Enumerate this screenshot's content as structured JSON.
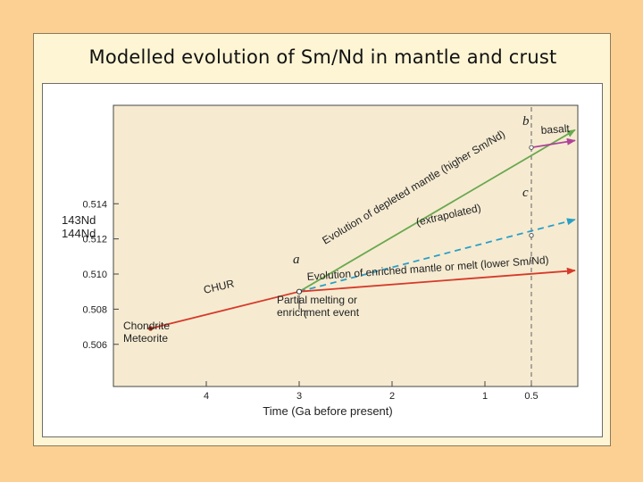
{
  "slide": {
    "title": "Modelled evolution of Sm/Nd in mantle and crust"
  },
  "chart_data": {
    "type": "line",
    "x_axis": {
      "label": "Time (Ga before present)",
      "ticks": [
        "4",
        "3",
        "2",
        "1",
        "0.5"
      ],
      "tick_values": [
        4,
        3,
        2,
        1,
        0.5
      ],
      "range": [
        5,
        0
      ],
      "reversed": true
    },
    "y_axis": {
      "label_top": "143Nd",
      "label_bottom": "144Nd",
      "ticks": [
        "0.506",
        "0.508",
        "0.510",
        "0.512",
        "0.514"
      ],
      "tick_values": [
        0.506,
        0.508,
        0.51,
        0.512,
        0.514
      ],
      "range": [
        0.5036,
        0.5196
      ]
    },
    "reference_line": {
      "x": 0.5,
      "style": "dashed"
    },
    "series": [
      {
        "name": "CHUR",
        "color": "#d63a2a",
        "dash": false,
        "points": [
          [
            4.6,
            0.5069
          ],
          [
            3,
            0.509
          ]
        ]
      },
      {
        "name": "Evolution of depleted mantle (higher Sm/Nd)",
        "color": "#6aa84f",
        "dash": false,
        "arrow": true,
        "points": [
          [
            3,
            0.509
          ],
          [
            0.03,
            0.5182
          ]
        ]
      },
      {
        "name": "basalt",
        "color": "#b0429a",
        "dash": false,
        "arrow": true,
        "points": [
          [
            0.5,
            0.5172
          ],
          [
            0.03,
            0.5176
          ]
        ]
      },
      {
        "name": "(extrapolated)",
        "color": "#2b9fc6",
        "dash": true,
        "arrow": true,
        "points": [
          [
            3,
            0.509
          ],
          [
            0.03,
            0.5131
          ]
        ]
      },
      {
        "name": "Evolution of enriched mantle or melt (lower Sm/Nd)",
        "color": "#d63a2a",
        "dash": false,
        "arrow": true,
        "points": [
          [
            3,
            0.509
          ],
          [
            0.03,
            0.5102
          ]
        ]
      }
    ],
    "annotations": [
      {
        "text": "a",
        "x": 3.0,
        "y": 0.509
      },
      {
        "text": "b",
        "x": 0.5,
        "y": 0.5172
      },
      {
        "text": "c",
        "x": 0.5,
        "y": 0.5122
      },
      {
        "text": "Chondrite",
        "x": 4.6,
        "y": 0.5069
      },
      {
        "text": "Meteorite",
        "x": 4.6,
        "y": 0.5069
      },
      {
        "text": "Partial melting or",
        "x": 3.0,
        "y": 0.509
      },
      {
        "text": "enrichment event",
        "x": 3.0,
        "y": 0.509
      }
    ],
    "grid": false,
    "legend": "none"
  }
}
